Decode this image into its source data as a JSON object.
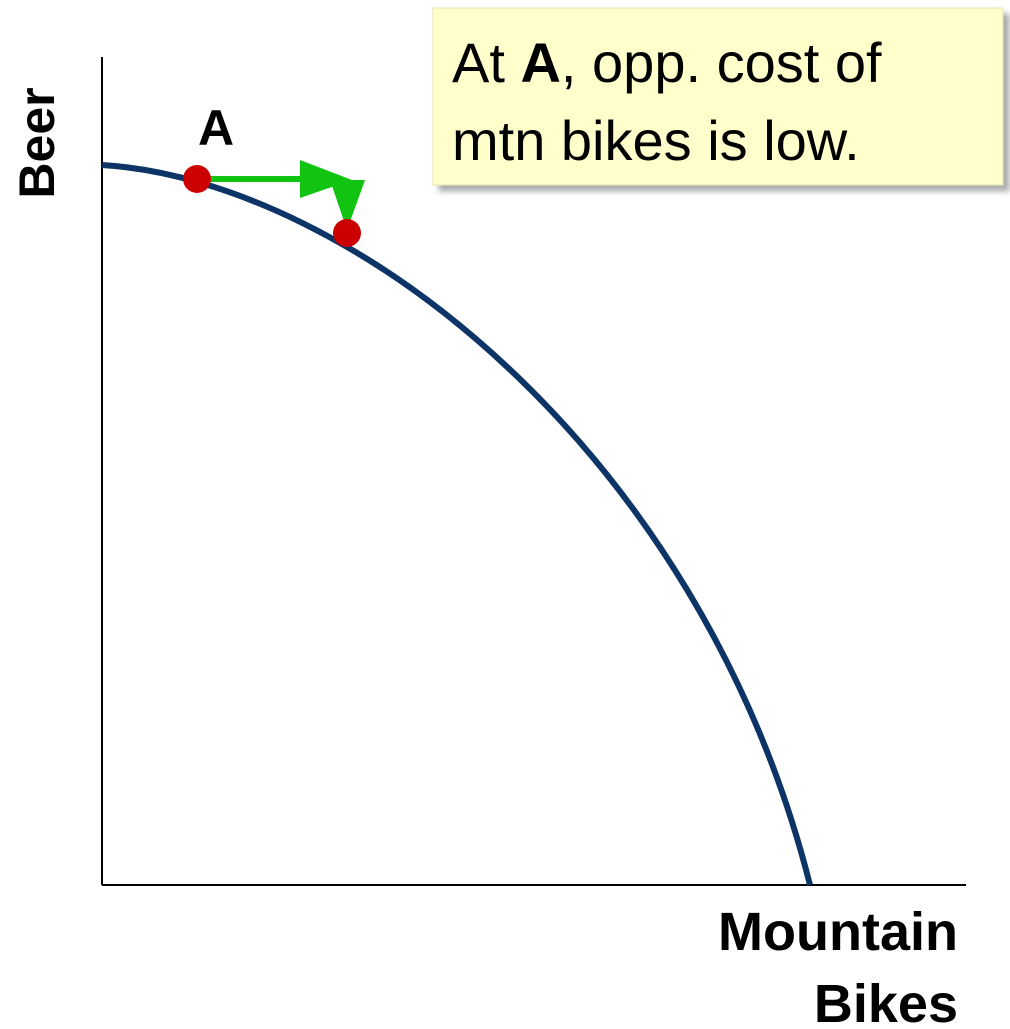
{
  "axes": {
    "y_label": "Beer",
    "x_label_lines": [
      "Mountain",
      "Bikes"
    ]
  },
  "point_label": "A",
  "callout": {
    "lines": [
      [
        {
          "text": "At "
        },
        {
          "text": "A",
          "bold": true
        },
        {
          "text": ", opp. cost of"
        }
      ],
      [
        {
          "text": "mtn bikes is low."
        }
      ]
    ]
  }
}
